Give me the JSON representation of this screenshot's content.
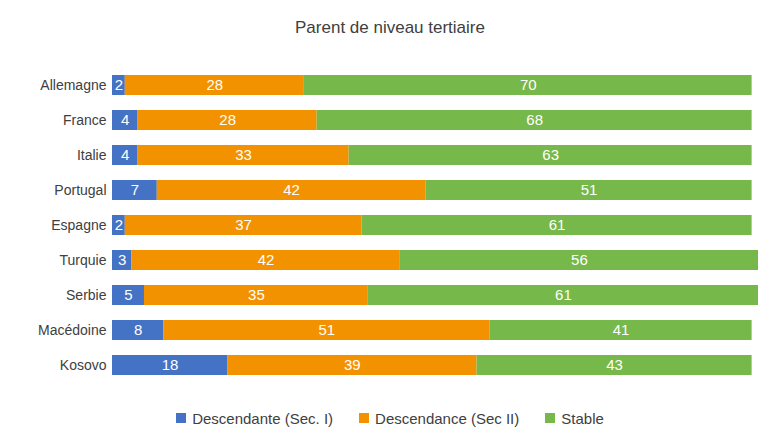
{
  "chart_data": {
    "type": "bar",
    "title": "Parent de niveau tertiaire",
    "orientation": "horizontal",
    "stacked": true,
    "data_labels": true,
    "tick_labels": "y",
    "legend": "bottom",
    "xlim": [
      0,
      101
    ],
    "categories": [
      "Allemagne",
      "France",
      "Italie",
      "Portugal",
      "Espagne",
      "Turquie",
      "Serbie",
      "Macédoine",
      "Kosovo"
    ],
    "series": [
      {
        "name": "Descendante (Sec. I)",
        "color": "#4472c4",
        "values": [
          2,
          4,
          4,
          7,
          2,
          3,
          5,
          8,
          18
        ]
      },
      {
        "name": "Descendance (Sec II)",
        "color": "#f39200",
        "values": [
          28,
          28,
          33,
          42,
          37,
          42,
          35,
          51,
          39
        ]
      },
      {
        "name": "Stable",
        "color": "#77b84a",
        "values": [
          70,
          68,
          63,
          51,
          61,
          56,
          61,
          41,
          43
        ]
      }
    ]
  }
}
